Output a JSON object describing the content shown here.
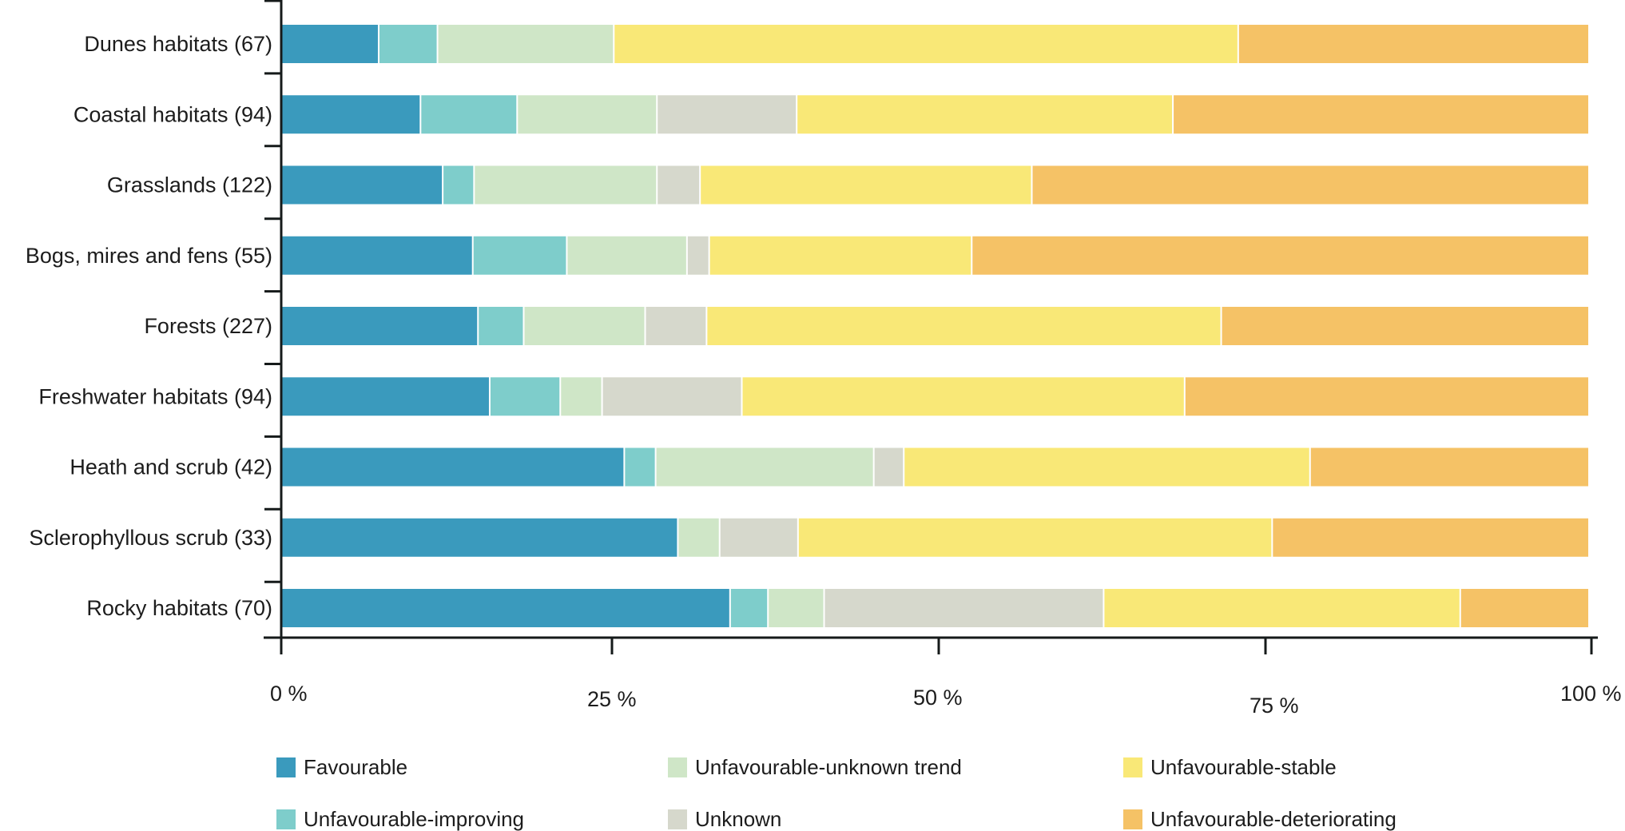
{
  "chart_data": {
    "type": "bar",
    "orientation": "horizontal",
    "stacked": true,
    "normalized": true,
    "title": "",
    "xlabel": "",
    "ylabel": "",
    "xlim": [
      0,
      100
    ],
    "x_ticks": [
      0,
      25,
      50,
      75,
      100
    ],
    "x_tick_labels": [
      "0 %",
      "25 %",
      "50 %",
      "75 %",
      "100 %"
    ],
    "grid": false,
    "legend_position": "bottom",
    "categories": [
      "Dunes habitats (67)",
      "Coastal habitats (94)",
      "Grasslands (122)",
      "Bogs, mires and fens (55)",
      "Forests (227)",
      "Freshwater habitats (94)",
      "Heath and scrub (42)",
      "Sclerophyllous scrub (33)",
      "Rocky habitats (70)"
    ],
    "series": [
      {
        "name": "Favourable",
        "color": "#3a9abd",
        "values": [
          7.4,
          10.6,
          12.3,
          14.6,
          15.0,
          15.9,
          26.2,
          30.3,
          34.3
        ]
      },
      {
        "name": "Unfavourable-improving",
        "color": "#7ecdcb",
        "values": [
          4.5,
          7.4,
          2.4,
          7.2,
          3.5,
          5.4,
          2.4,
          0.0,
          2.9
        ]
      },
      {
        "name": "Unfavourable-unknown trend",
        "color": "#cfe6c7",
        "values": [
          13.5,
          10.7,
          14.0,
          9.2,
          9.3,
          3.2,
          16.7,
          3.2,
          4.3
        ]
      },
      {
        "name": "Unknown",
        "color": "#d6d8cc",
        "values": [
          0.0,
          10.7,
          3.3,
          1.7,
          4.7,
          10.7,
          2.3,
          6.0,
          21.4
        ]
      },
      {
        "name": "Unfavourable-stable",
        "color": "#f9e877",
        "values": [
          47.8,
          28.8,
          25.4,
          20.1,
          39.4,
          33.9,
          31.1,
          36.3,
          27.3
        ]
      },
      {
        "name": "Unfavourable-deteriorating",
        "color": "#f5c266",
        "values": [
          26.8,
          31.8,
          42.6,
          47.2,
          28.1,
          30.9,
          21.3,
          24.2,
          9.8
        ]
      }
    ]
  },
  "legend": {
    "items": [
      {
        "label": "Favourable",
        "color": "#3a9abd"
      },
      {
        "label": "Unfavourable-improving",
        "color": "#7ecdcb"
      },
      {
        "label": "Unfavourable-unknown trend",
        "color": "#cfe6c7"
      },
      {
        "label": "Unknown",
        "color": "#d6d8cc"
      },
      {
        "label": "Unfavourable-stable",
        "color": "#f9e877"
      },
      {
        "label": "Unfavourable-deteriorating",
        "color": "#f5c266"
      }
    ]
  },
  "colors": {
    "axis": "#151a1a",
    "text": "#1c1c1c",
    "background": "#ffffff"
  }
}
